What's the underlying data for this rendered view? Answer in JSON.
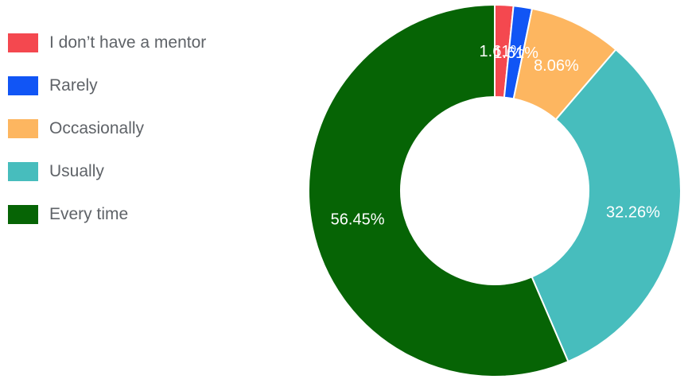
{
  "chart_data": {
    "type": "pie",
    "donut": true,
    "legend_position": "left",
    "categories": [
      "I don’t have a mentor",
      "Rarely",
      "Occasionally",
      "Usually",
      "Every time"
    ],
    "values": [
      1.61,
      1.61,
      8.06,
      32.26,
      56.45
    ],
    "value_labels": [
      "1.61%",
      "1.61%",
      "8.06%",
      "32.26%",
      "56.45%"
    ],
    "colors": [
      "#f4484f",
      "#1155f5",
      "#fdb660",
      "#47bdbd",
      "#066405"
    ]
  }
}
